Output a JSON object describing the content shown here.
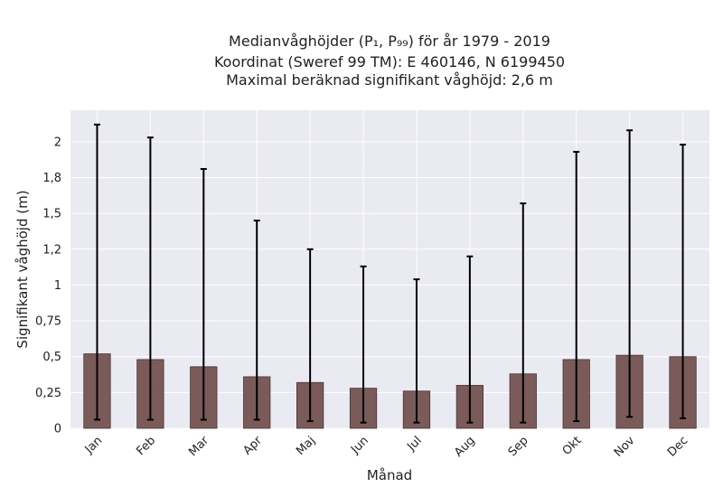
{
  "chart_data": {
    "type": "bar",
    "title_lines": [
      "Medianvåghöjder (P₁, P₉₉) för år 1979 - 2019",
      "Koordinat (Sweref 99 TM): E 460146, N 6199450",
      "Maximal beräknad signifikant våghöjd: 2,6 m"
    ],
    "xlabel": "Månad",
    "ylabel": "Signifikant våghöjd (m)",
    "categories": [
      "Jan",
      "Feb",
      "Mar",
      "Apr",
      "Maj",
      "Jun",
      "Jul",
      "Aug",
      "Sep",
      "Okt",
      "Nov",
      "Dec"
    ],
    "values": [
      0.52,
      0.48,
      0.43,
      0.36,
      0.32,
      0.28,
      0.26,
      0.3,
      0.38,
      0.48,
      0.51,
      0.5
    ],
    "error_low": [
      0.06,
      0.06,
      0.06,
      0.06,
      0.05,
      0.04,
      0.04,
      0.04,
      0.04,
      0.05,
      0.08,
      0.07
    ],
    "error_high": [
      2.12,
      2.03,
      1.81,
      1.45,
      1.25,
      1.13,
      1.04,
      1.2,
      1.57,
      1.93,
      2.08,
      1.98
    ],
    "yticks": [
      0,
      0.25,
      0.5,
      0.75,
      1,
      1.25,
      1.5,
      1.75,
      2
    ],
    "ytick_labels": [
      "0",
      "0,25",
      "0,5",
      "0,75",
      "1",
      "1,2",
      "1,5",
      "1,8",
      "2"
    ],
    "ylim": [
      0,
      2.22
    ],
    "grid": true,
    "colors": {
      "bar": "#7b5a5a",
      "bar_edge": "#4a3434",
      "error": "#000000",
      "plot_bg": "#eaeaf2",
      "grid": "#ffffff"
    }
  }
}
